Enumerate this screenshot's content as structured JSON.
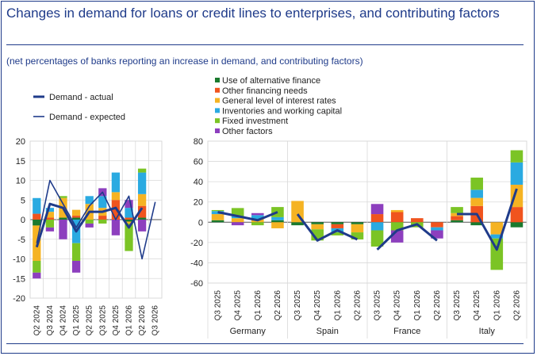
{
  "title": "Changes in demand for loans or credit lines to enterprises, and contributing factors",
  "subtitle": "(net percentages of banks reporting an increase in demand, and contributing factors)",
  "colors": {
    "alt_finance": "#1a7a2e",
    "other_financing": "#f0541e",
    "interest_rates": "#f5b323",
    "inventories": "#2aaae1",
    "fixed_investment": "#7bc425",
    "other_factors": "#8d3fbe",
    "line": "#1f3b8a",
    "axis": "#555555",
    "grid": "#d9d9d9"
  },
  "chart_data": [
    {
      "type": "bar",
      "stacked": true,
      "region": "euro area",
      "categories": [
        "Q2 2024",
        "Q3 2024",
        "Q4 2024",
        "Q1 2025",
        "Q2 2025",
        "Q3 2025",
        "Q4 2025",
        "Q1 2026",
        "Q2 2026",
        "Q3 2026"
      ],
      "ylim": [
        -20,
        20
      ],
      "yticks": [
        -20,
        -15,
        -10,
        -5,
        0,
        5,
        10,
        15,
        20
      ],
      "grid": true,
      "series": [
        {
          "name": "Use of alternative finance",
          "key": "alt_finance",
          "values": [
            -1.5,
            0,
            0.5,
            0.5,
            0,
            0,
            0,
            -0.5,
            0.5,
            null
          ]
        },
        {
          "name": "Other financing needs",
          "key": "other_financing",
          "values": [
            1.5,
            0.5,
            0,
            0.5,
            0,
            1,
            5,
            0.5,
            3,
            null
          ]
        },
        {
          "name": "General level of interest rates",
          "key": "interest_rates",
          "values": [
            -9,
            1.5,
            5,
            1.5,
            4,
            2,
            2,
            -0.5,
            3,
            null
          ]
        },
        {
          "name": "Inventories and working capital",
          "key": "inventories",
          "values": [
            4,
            1,
            0,
            -6,
            2,
            3,
            5,
            2.5,
            5.5,
            null
          ]
        },
        {
          "name": "Fixed investment",
          "key": "fixed_investment",
          "values": [
            -3,
            -2,
            0.5,
            -4.5,
            -1,
            -1,
            0,
            -7,
            1,
            null
          ]
        },
        {
          "name": "Other factors",
          "key": "other_factors",
          "values": [
            -1.5,
            -1,
            -5,
            -3,
            -1,
            2,
            -4,
            2,
            -3,
            null
          ]
        }
      ],
      "lines": [
        {
          "name": "Demand - actual",
          "key": "actual",
          "values": [
            -7,
            4,
            3,
            -3,
            2,
            2,
            3,
            -2,
            3,
            null
          ]
        },
        {
          "name": "Demand - expected",
          "key": "expected",
          "values": [
            -6,
            10,
            4,
            -2,
            3.5,
            7,
            0,
            6,
            -10,
            4.5
          ]
        }
      ]
    },
    {
      "type": "bar",
      "stacked": true,
      "region": "countries",
      "groups": [
        "Germany",
        "Spain",
        "France",
        "Italy"
      ],
      "quarters": [
        "Q3 2025",
        "Q4 2025",
        "Q1 2026",
        "Q2 2026"
      ],
      "ylim": [
        -60,
        80
      ],
      "yticks": [
        -60,
        -40,
        -20,
        0,
        20,
        40,
        60,
        80
      ],
      "grid": true,
      "countries": [
        {
          "name": "Germany",
          "series": {
            "alt_finance": [
              2,
              0,
              0,
              2
            ],
            "other_financing": [
              0,
              0,
              0,
              0
            ],
            "interest_rates": [
              6,
              4,
              3,
              -6
            ],
            "inventories": [
              3,
              2,
              4,
              3
            ],
            "fixed_investment": [
              1,
              8,
              -3,
              10
            ],
            "other_factors": [
              0,
              -3,
              2,
              0
            ]
          },
          "actual": [
            10,
            6,
            2,
            10
          ],
          "expected": [
            null,
            null,
            null,
            null
          ]
        },
        {
          "name": "Spain",
          "series": {
            "alt_finance": [
              -3,
              -2,
              -2,
              -2
            ],
            "other_financing": [
              0,
              0,
              -4,
              0
            ],
            "interest_rates": [
              21,
              -5,
              0,
              -8
            ],
            "inventories": [
              0,
              0,
              -4,
              0
            ],
            "fixed_investment": [
              0,
              -11,
              -3,
              -7
            ],
            "other_factors": [
              0,
              0,
              0,
              0
            ]
          },
          "actual": [
            8,
            -18,
            -8,
            -17
          ],
          "expected": [
            null,
            null,
            null,
            null
          ]
        },
        {
          "name": "France",
          "series": {
            "alt_finance": [
              0,
              0,
              0,
              0
            ],
            "other_financing": [
              8,
              10,
              4,
              -5
            ],
            "interest_rates": [
              0,
              2,
              0,
              0
            ],
            "inventories": [
              -8,
              0,
              0,
              -3
            ],
            "fixed_investment": [
              -16,
              -8,
              -5,
              0
            ],
            "other_factors": [
              10,
              -12,
              0,
              -8
            ]
          },
          "actual": [
            -27,
            -8,
            -2,
            -18
          ],
          "expected": [
            null,
            null,
            null,
            null
          ]
        },
        {
          "name": "Italy",
          "series": {
            "alt_finance": [
              2,
              -3,
              0,
              -5
            ],
            "other_financing": [
              4,
              16,
              0,
              15
            ],
            "interest_rates": [
              3,
              8,
              -12,
              22
            ],
            "inventories": [
              0,
              8,
              -4,
              22
            ],
            "fixed_investment": [
              6,
              12,
              -31,
              12
            ],
            "other_factors": [
              0,
              0,
              0,
              0
            ]
          },
          "actual": [
            8,
            8,
            -27,
            33
          ],
          "expected": [
            null,
            null,
            null,
            null
          ]
        }
      ]
    }
  ]
}
